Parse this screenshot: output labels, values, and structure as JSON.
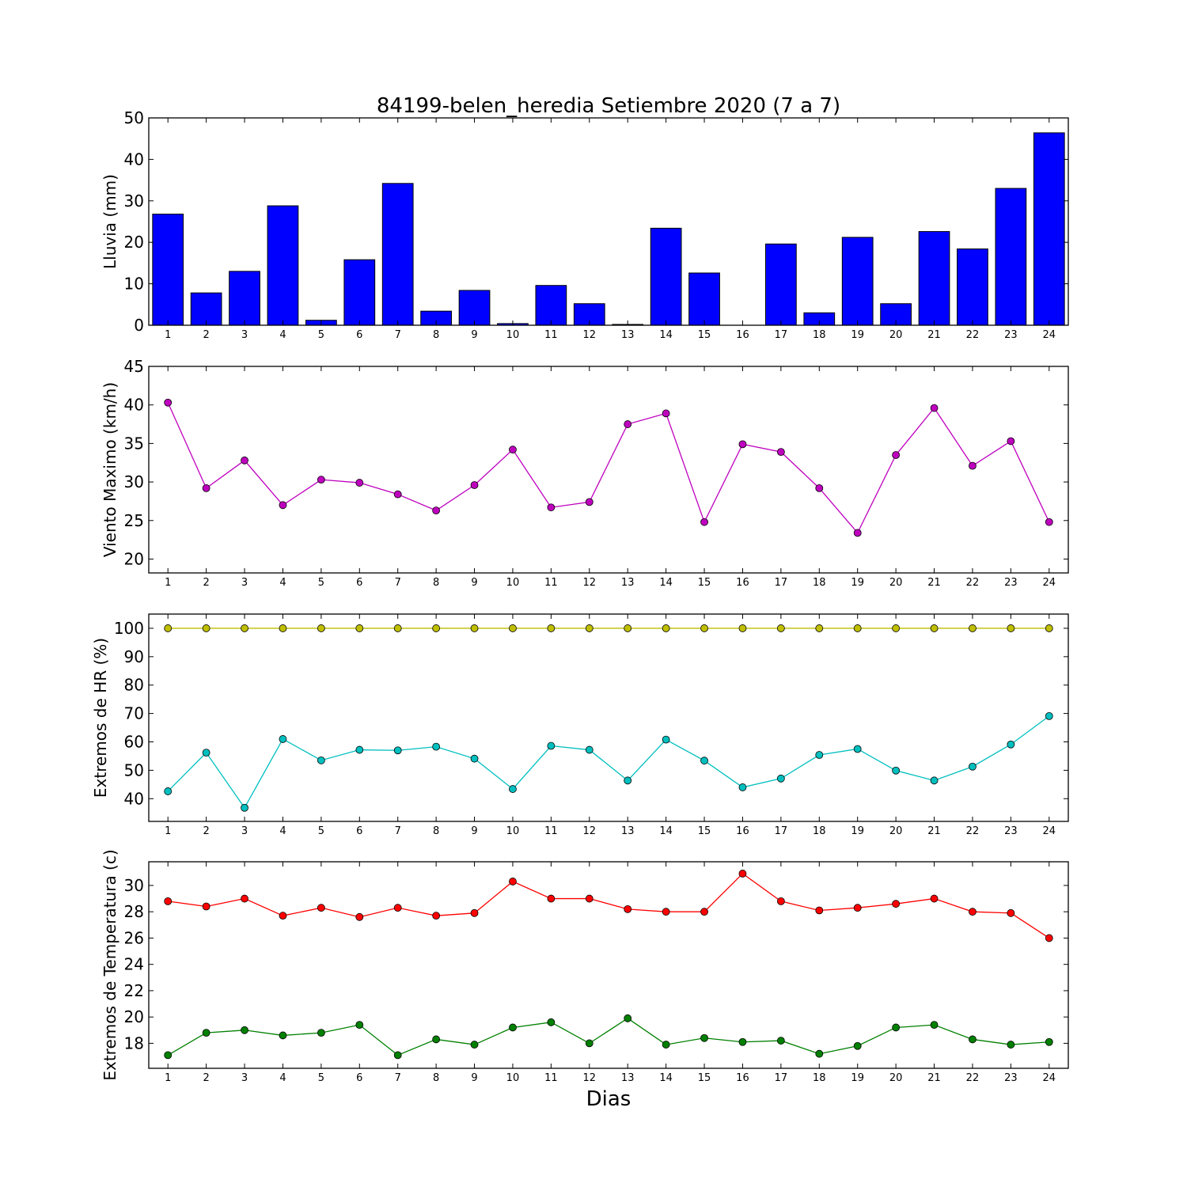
{
  "figure": {
    "title": "84199-belen_heredia Setiembre 2020  (7 a 7)",
    "xlabel": "Dias"
  },
  "chart_data": [
    {
      "type": "bar",
      "ylabel": "Lluvia (mm)",
      "ylim": [
        0,
        50
      ],
      "yticks": [
        0,
        10,
        20,
        30,
        40,
        50
      ],
      "categories": [
        "1",
        "2",
        "3",
        "4",
        "5",
        "6",
        "7",
        "8",
        "9",
        "10",
        "11",
        "12",
        "13",
        "14",
        "15",
        "16",
        "17",
        "18",
        "19",
        "20",
        "21",
        "22",
        "23",
        "24"
      ],
      "series": [
        {
          "color": "#0000ff",
          "values": [
            26.8,
            7.8,
            13.0,
            28.8,
            1.2,
            15.8,
            34.2,
            3.4,
            8.4,
            0.4,
            9.6,
            5.2,
            0.2,
            23.4,
            12.6,
            0.0,
            19.6,
            3.0,
            21.2,
            5.2,
            22.6,
            18.4,
            33.0,
            46.4
          ]
        }
      ]
    },
    {
      "type": "line",
      "ylabel": "Viento Maximo (km/h)",
      "ylim": [
        18.2,
        45
      ],
      "yticks": [
        20,
        25,
        30,
        35,
        40,
        45
      ],
      "x": [
        1,
        2,
        3,
        4,
        5,
        6,
        7,
        8,
        9,
        10,
        11,
        12,
        13,
        14,
        15,
        16,
        17,
        18,
        19,
        20,
        21,
        22,
        23,
        24
      ],
      "series": [
        {
          "color": "#bf00bf",
          "values": [
            40.3,
            29.2,
            32.8,
            27.0,
            30.3,
            29.9,
            28.4,
            26.3,
            29.6,
            34.2,
            26.7,
            27.4,
            37.5,
            38.9,
            24.8,
            34.9,
            33.9,
            29.2,
            23.4,
            33.5,
            39.6,
            32.1,
            35.3,
            24.8
          ]
        }
      ]
    },
    {
      "type": "line",
      "ylabel": "Extremos de HR (%)",
      "ylim": [
        32,
        105
      ],
      "yticks": [
        40,
        50,
        60,
        70,
        80,
        90,
        100
      ],
      "x": [
        1,
        2,
        3,
        4,
        5,
        6,
        7,
        8,
        9,
        10,
        11,
        12,
        13,
        14,
        15,
        16,
        17,
        18,
        19,
        20,
        21,
        22,
        23,
        24
      ],
      "series": [
        {
          "color": "#bfbf00",
          "values": [
            100,
            100,
            100,
            100,
            100,
            100,
            100,
            100,
            100,
            100,
            100,
            100,
            100,
            100,
            100,
            100,
            100,
            100,
            100,
            100,
            100,
            100,
            100,
            100
          ]
        },
        {
          "color": "#00bfbf",
          "values": [
            42.6,
            56.2,
            36.8,
            61.0,
            53.5,
            57.2,
            57.0,
            58.3,
            54.1,
            43.4,
            58.6,
            57.2,
            46.4,
            60.8,
            53.4,
            44.0,
            47.1,
            55.4,
            57.5,
            49.9,
            46.4,
            51.3,
            59.1,
            69.1
          ]
        }
      ]
    },
    {
      "type": "line",
      "ylabel": "Extremos de Temperatura (c)",
      "ylim": [
        16.1,
        31.8
      ],
      "yticks": [
        18,
        20,
        22,
        24,
        26,
        28,
        30
      ],
      "x": [
        1,
        2,
        3,
        4,
        5,
        6,
        7,
        8,
        9,
        10,
        11,
        12,
        13,
        14,
        15,
        16,
        17,
        18,
        19,
        20,
        21,
        22,
        23,
        24
      ],
      "series": [
        {
          "color": "#ff0000",
          "values": [
            28.8,
            28.4,
            29.0,
            27.7,
            28.3,
            27.6,
            28.3,
            27.7,
            27.9,
            30.3,
            29.0,
            29.0,
            28.2,
            28.0,
            28.0,
            30.9,
            28.8,
            28.1,
            28.3,
            28.6,
            29.0,
            28.0,
            27.9,
            26.0
          ]
        },
        {
          "color": "#008000",
          "values": [
            17.1,
            18.8,
            19.0,
            18.6,
            18.8,
            19.4,
            17.1,
            18.3,
            17.9,
            19.2,
            19.6,
            18.0,
            19.9,
            17.9,
            18.4,
            18.1,
            18.2,
            17.2,
            17.8,
            19.2,
            19.4,
            18.3,
            17.9,
            18.1
          ]
        }
      ]
    }
  ]
}
